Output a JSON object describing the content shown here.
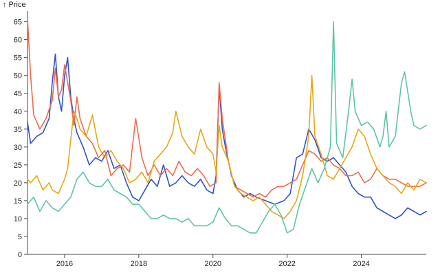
{
  "chart_data": {
    "type": "line",
    "ylabel": "↑ Price",
    "ylim": [
      0,
      68
    ],
    "xlim": [
      "2015-01",
      "2025-10"
    ],
    "y_ticks": [
      0,
      5,
      10,
      15,
      20,
      25,
      30,
      35,
      40,
      45,
      50,
      55,
      60,
      65
    ],
    "x_ticks": [
      "2016",
      "2018",
      "2020",
      "2022",
      "2024"
    ],
    "grid": false,
    "series": [
      {
        "color": "#2f52c8",
        "points": [
          [
            "2015-01",
            37
          ],
          [
            "2015-02",
            31
          ],
          [
            "2015-04",
            33
          ],
          [
            "2015-06",
            34
          ],
          [
            "2015-08",
            38
          ],
          [
            "2015-09",
            48
          ],
          [
            "2015-10",
            56
          ],
          [
            "2015-11",
            44
          ],
          [
            "2015-12",
            40
          ],
          [
            "2016-01",
            50
          ],
          [
            "2016-02",
            55
          ],
          [
            "2016-03",
            44
          ],
          [
            "2016-04",
            38
          ],
          [
            "2016-05",
            34
          ],
          [
            "2016-07",
            30
          ],
          [
            "2016-09",
            25
          ],
          [
            "2016-11",
            27
          ],
          [
            "2017-01",
            26
          ],
          [
            "2017-03",
            29
          ],
          [
            "2017-05",
            24
          ],
          [
            "2017-07",
            25
          ],
          [
            "2017-09",
            20
          ],
          [
            "2017-11",
            16
          ],
          [
            "2018-01",
            15
          ],
          [
            "2018-03",
            18
          ],
          [
            "2018-05",
            21
          ],
          [
            "2018-07",
            19
          ],
          [
            "2018-09",
            25
          ],
          [
            "2018-11",
            19
          ],
          [
            "2019-01",
            20
          ],
          [
            "2019-03",
            22
          ],
          [
            "2019-05",
            20
          ],
          [
            "2019-07",
            19
          ],
          [
            "2019-09",
            21
          ],
          [
            "2019-11",
            18
          ],
          [
            "2020-01",
            17
          ],
          [
            "2020-02",
            22
          ],
          [
            "2020-03",
            47
          ],
          [
            "2020-04",
            35
          ],
          [
            "2020-05",
            30
          ],
          [
            "2020-07",
            22
          ],
          [
            "2020-09",
            18
          ],
          [
            "2020-11",
            16
          ],
          [
            "2021-01",
            17
          ],
          [
            "2021-03",
            16
          ],
          [
            "2021-06",
            15
          ],
          [
            "2021-09",
            14
          ],
          [
            "2021-12",
            15
          ],
          [
            "2022-02",
            17
          ],
          [
            "2022-04",
            27
          ],
          [
            "2022-06",
            28
          ],
          [
            "2022-08",
            35
          ],
          [
            "2022-10",
            32
          ],
          [
            "2022-12",
            27
          ],
          [
            "2023-02",
            26
          ],
          [
            "2023-04",
            27
          ],
          [
            "2023-06",
            25
          ],
          [
            "2023-08",
            23
          ],
          [
            "2023-10",
            19
          ],
          [
            "2023-12",
            17
          ],
          [
            "2024-02",
            16
          ],
          [
            "2024-04",
            16
          ],
          [
            "2024-06",
            13
          ],
          [
            "2024-08",
            12
          ],
          [
            "2024-10",
            11
          ],
          [
            "2024-12",
            10
          ],
          [
            "2025-02",
            11
          ],
          [
            "2025-04",
            13
          ],
          [
            "2025-06",
            12
          ],
          [
            "2025-08",
            11
          ],
          [
            "2025-10",
            12
          ]
        ]
      },
      {
        "color": "#ef6a4c",
        "points": [
          [
            "2015-01",
            66
          ],
          [
            "2015-02",
            50
          ],
          [
            "2015-03",
            39
          ],
          [
            "2015-05",
            35
          ],
          [
            "2015-07",
            38
          ],
          [
            "2015-09",
            43
          ],
          [
            "2015-10",
            52
          ],
          [
            "2015-11",
            44
          ],
          [
            "2015-12",
            46
          ],
          [
            "2016-01",
            53
          ],
          [
            "2016-02",
            48
          ],
          [
            "2016-03",
            43
          ],
          [
            "2016-04",
            36
          ],
          [
            "2016-05",
            44
          ],
          [
            "2016-06",
            38
          ],
          [
            "2016-08",
            33
          ],
          [
            "2016-10",
            31
          ],
          [
            "2016-12",
            27
          ],
          [
            "2017-02",
            29
          ],
          [
            "2017-04",
            22
          ],
          [
            "2017-06",
            24
          ],
          [
            "2017-08",
            25
          ],
          [
            "2017-10",
            23
          ],
          [
            "2017-12",
            38
          ],
          [
            "2018-02",
            27
          ],
          [
            "2018-04",
            22
          ],
          [
            "2018-06",
            25
          ],
          [
            "2018-08",
            22
          ],
          [
            "2018-10",
            24
          ],
          [
            "2018-12",
            22
          ],
          [
            "2019-02",
            26
          ],
          [
            "2019-04",
            23
          ],
          [
            "2019-06",
            22
          ],
          [
            "2019-08",
            24
          ],
          [
            "2019-10",
            22
          ],
          [
            "2019-12",
            19
          ],
          [
            "2020-02",
            20
          ],
          [
            "2020-03",
            48
          ],
          [
            "2020-04",
            38
          ],
          [
            "2020-05",
            32
          ],
          [
            "2020-06",
            26
          ],
          [
            "2020-08",
            19
          ],
          [
            "2020-10",
            18
          ],
          [
            "2020-12",
            17
          ],
          [
            "2021-02",
            16
          ],
          [
            "2021-04",
            17
          ],
          [
            "2021-06",
            16
          ],
          [
            "2021-08",
            18
          ],
          [
            "2021-10",
            19
          ],
          [
            "2021-12",
            19
          ],
          [
            "2022-02",
            20
          ],
          [
            "2022-04",
            21
          ],
          [
            "2022-06",
            25
          ],
          [
            "2022-08",
            29
          ],
          [
            "2022-10",
            28
          ],
          [
            "2022-12",
            26
          ],
          [
            "2023-02",
            27
          ],
          [
            "2023-04",
            25
          ],
          [
            "2023-06",
            24
          ],
          [
            "2023-08",
            22
          ],
          [
            "2023-10",
            22
          ],
          [
            "2023-12",
            23
          ],
          [
            "2024-02",
            20
          ],
          [
            "2024-04",
            21
          ],
          [
            "2024-06",
            24
          ],
          [
            "2024-08",
            22
          ],
          [
            "2024-10",
            21
          ],
          [
            "2024-12",
            21
          ],
          [
            "2025-02",
            20
          ],
          [
            "2025-04",
            19
          ],
          [
            "2025-06",
            19
          ],
          [
            "2025-08",
            19
          ],
          [
            "2025-10",
            20
          ]
        ]
      },
      {
        "color": "#e6a811",
        "points": [
          [
            "2015-01",
            21
          ],
          [
            "2015-02",
            20
          ],
          [
            "2015-04",
            22
          ],
          [
            "2015-06",
            18
          ],
          [
            "2015-08",
            20
          ],
          [
            "2015-09",
            18
          ],
          [
            "2015-11",
            17
          ],
          [
            "2015-12",
            19
          ],
          [
            "2016-01",
            21
          ],
          [
            "2016-02",
            24
          ],
          [
            "2016-03",
            32
          ],
          [
            "2016-04",
            40
          ],
          [
            "2016-05",
            38
          ],
          [
            "2016-06",
            35
          ],
          [
            "2016-08",
            33
          ],
          [
            "2016-10",
            39
          ],
          [
            "2016-12",
            30
          ],
          [
            "2017-02",
            27
          ],
          [
            "2017-04",
            29
          ],
          [
            "2017-06",
            26
          ],
          [
            "2017-08",
            24
          ],
          [
            "2017-10",
            20
          ],
          [
            "2017-12",
            21
          ],
          [
            "2018-02",
            23
          ],
          [
            "2018-04",
            20
          ],
          [
            "2018-06",
            26
          ],
          [
            "2018-08",
            28
          ],
          [
            "2018-10",
            30
          ],
          [
            "2018-12",
            34
          ],
          [
            "2019-01",
            40
          ],
          [
            "2019-03",
            33
          ],
          [
            "2019-05",
            30
          ],
          [
            "2019-07",
            28
          ],
          [
            "2019-09",
            35
          ],
          [
            "2019-11",
            30
          ],
          [
            "2020-01",
            28
          ],
          [
            "2020-02",
            23
          ],
          [
            "2020-03",
            36
          ],
          [
            "2020-04",
            30
          ],
          [
            "2020-06",
            26
          ],
          [
            "2020-08",
            19
          ],
          [
            "2020-10",
            17
          ],
          [
            "2020-12",
            16
          ],
          [
            "2021-02",
            15
          ],
          [
            "2021-04",
            16
          ],
          [
            "2021-06",
            14
          ],
          [
            "2021-08",
            12
          ],
          [
            "2021-10",
            11
          ],
          [
            "2021-12",
            10
          ],
          [
            "2022-02",
            12
          ],
          [
            "2022-04",
            15
          ],
          [
            "2022-06",
            22
          ],
          [
            "2022-08",
            33
          ],
          [
            "2022-09",
            50
          ],
          [
            "2022-10",
            33
          ],
          [
            "2022-12",
            28
          ],
          [
            "2023-02",
            22
          ],
          [
            "2023-04",
            21
          ],
          [
            "2023-06",
            24
          ],
          [
            "2023-08",
            27
          ],
          [
            "2023-10",
            30
          ],
          [
            "2023-12",
            35
          ],
          [
            "2024-02",
            33
          ],
          [
            "2024-04",
            28
          ],
          [
            "2024-06",
            24
          ],
          [
            "2024-08",
            22
          ],
          [
            "2024-10",
            20
          ],
          [
            "2024-12",
            19
          ],
          [
            "2025-02",
            17
          ],
          [
            "2025-04",
            20
          ],
          [
            "2025-06",
            18
          ],
          [
            "2025-08",
            21
          ],
          [
            "2025-10",
            20
          ]
        ]
      },
      {
        "color": "#5cc4a8",
        "points": [
          [
            "2015-01",
            14
          ],
          [
            "2015-03",
            16
          ],
          [
            "2015-05",
            12
          ],
          [
            "2015-07",
            15
          ],
          [
            "2015-09",
            13
          ],
          [
            "2015-11",
            12
          ],
          [
            "2016-01",
            14
          ],
          [
            "2016-03",
            16
          ],
          [
            "2016-05",
            21
          ],
          [
            "2016-07",
            23
          ],
          [
            "2016-09",
            20
          ],
          [
            "2016-11",
            19
          ],
          [
            "2017-01",
            19
          ],
          [
            "2017-03",
            21
          ],
          [
            "2017-05",
            18
          ],
          [
            "2017-07",
            17
          ],
          [
            "2017-09",
            16
          ],
          [
            "2017-11",
            14
          ],
          [
            "2018-01",
            14
          ],
          [
            "2018-03",
            12
          ],
          [
            "2018-05",
            10
          ],
          [
            "2018-07",
            10
          ],
          [
            "2018-09",
            11
          ],
          [
            "2018-11",
            10
          ],
          [
            "2019-01",
            10
          ],
          [
            "2019-03",
            9
          ],
          [
            "2019-05",
            10
          ],
          [
            "2019-07",
            8
          ],
          [
            "2019-09",
            8
          ],
          [
            "2019-11",
            8
          ],
          [
            "2020-01",
            9
          ],
          [
            "2020-03",
            13
          ],
          [
            "2020-05",
            10
          ],
          [
            "2020-07",
            8
          ],
          [
            "2020-09",
            8
          ],
          [
            "2020-11",
            7
          ],
          [
            "2021-01",
            6
          ],
          [
            "2021-03",
            6
          ],
          [
            "2021-05",
            9
          ],
          [
            "2021-07",
            12
          ],
          [
            "2021-09",
            14
          ],
          [
            "2021-11",
            11
          ],
          [
            "2022-01",
            6
          ],
          [
            "2022-03",
            7
          ],
          [
            "2022-05",
            14
          ],
          [
            "2022-07",
            19
          ],
          [
            "2022-09",
            24
          ],
          [
            "2022-11",
            20
          ],
          [
            "2023-01",
            24
          ],
          [
            "2023-03",
            30
          ],
          [
            "2023-04",
            65
          ],
          [
            "2023-05",
            31
          ],
          [
            "2023-07",
            27
          ],
          [
            "2023-09",
            41
          ],
          [
            "2023-10",
            49
          ],
          [
            "2023-11",
            40
          ],
          [
            "2024-01",
            36
          ],
          [
            "2024-03",
            37
          ],
          [
            "2024-05",
            35
          ],
          [
            "2024-07",
            30
          ],
          [
            "2024-08",
            33
          ],
          [
            "2024-09",
            40
          ],
          [
            "2024-10",
            30
          ],
          [
            "2024-12",
            33
          ],
          [
            "2025-02",
            48
          ],
          [
            "2025-03",
            51
          ],
          [
            "2025-05",
            40
          ],
          [
            "2025-06",
            36
          ],
          [
            "2025-08",
            35
          ],
          [
            "2025-10",
            36
          ]
        ]
      }
    ]
  }
}
